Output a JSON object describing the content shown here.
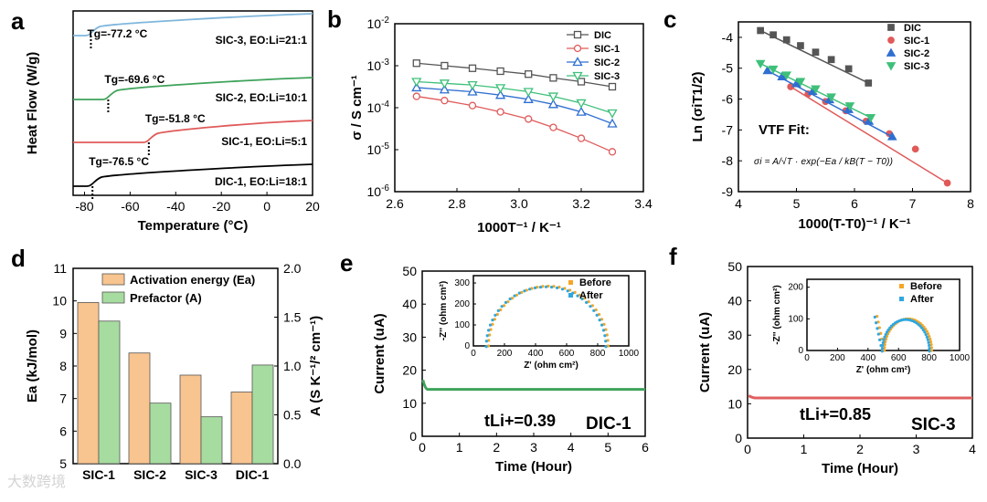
{
  "watermark": "大数跨境",
  "chart_data": [
    {
      "panel": "a",
      "type": "line",
      "xlabel": "Temperature (°C)",
      "ylabel": "Heat Flow (W/g)",
      "xlim": [
        -85,
        20
      ],
      "xticks": [
        -80,
        -60,
        -40,
        -20,
        0,
        20
      ],
      "series": [
        {
          "name": "SIC-3, EO:Li=21:1",
          "color": "#7fb6dc",
          "tg_label": "Tg=-77.2 °C",
          "tg": -77.2
        },
        {
          "name": "SIC-2, EO:Li=10:1",
          "color": "#3ea35a",
          "tg_label": "Tg=-69.6 °C",
          "tg": -69.6
        },
        {
          "name": "SIC-1, EO:Li=5:1",
          "color": "#e05a5a",
          "tg_label": "Tg=-51.8 °C",
          "tg": -51.8
        },
        {
          "name": "DIC-1, EO:Li=18:1",
          "color": "#000000",
          "tg_label": "Tg=-76.5 °C",
          "tg": -76.5
        }
      ]
    },
    {
      "panel": "b",
      "type": "line",
      "xlabel": "1000T⁻¹ / K⁻¹",
      "ylabel": "σ / S cm⁻¹",
      "xlim": [
        2.6,
        3.4
      ],
      "ylim_log10": [
        -6,
        -2
      ],
      "xticks": [
        2.6,
        2.8,
        3.0,
        3.2,
        3.4
      ],
      "yticks": [
        "10-6",
        "10-5",
        "10-4",
        "10-3",
        "10-2"
      ],
      "x": [
        2.67,
        2.76,
        2.85,
        2.94,
        3.03,
        3.11,
        3.2,
        3.3
      ],
      "series": [
        {
          "name": "DIC",
          "color": "#555555",
          "marker": "square",
          "log10": [
            -2.94,
            -3.0,
            -3.06,
            -3.13,
            -3.2,
            -3.29,
            -3.38,
            -3.5
          ]
        },
        {
          "name": "SIC-1",
          "color": "#e05a5a",
          "marker": "circle",
          "log10": [
            -3.73,
            -3.83,
            -3.95,
            -4.1,
            -4.27,
            -4.47,
            -4.73,
            -5.05
          ]
        },
        {
          "name": "SIC-2",
          "color": "#2f6fd0",
          "marker": "triangle-up",
          "log10": [
            -3.52,
            -3.57,
            -3.62,
            -3.7,
            -3.8,
            -3.92,
            -4.1,
            -4.38
          ]
        },
        {
          "name": "SIC-3",
          "color": "#3ec07a",
          "marker": "triangle-down",
          "log10": [
            -3.38,
            -3.42,
            -3.46,
            -3.53,
            -3.62,
            -3.73,
            -3.89,
            -4.13
          ]
        }
      ]
    },
    {
      "panel": "c",
      "type": "scatter",
      "xlabel": "1000(T-T0)⁻¹ / K⁻¹",
      "ylabel": "Ln (σiT1/2)",
      "xlim": [
        4,
        8
      ],
      "ylim": [
        -9,
        -3.5
      ],
      "xticks": [
        4,
        5,
        6,
        7,
        8
      ],
      "yticks": [
        -4,
        -5,
        -6,
        -7,
        -8,
        -9
      ],
      "annotation_title": "VTF Fit:",
      "annotation_formula": "σi = A/√T · exp(−Ea / kB(T − T0))",
      "series": [
        {
          "name": "DIC",
          "color": "#555555",
          "marker": "square",
          "x": [
            4.38,
            4.6,
            4.83,
            5.07,
            5.33,
            5.6,
            5.9,
            6.24
          ],
          "y": [
            -3.78,
            -3.92,
            -4.08,
            -4.27,
            -4.48,
            -4.72,
            -5.02,
            -5.48
          ]
        },
        {
          "name": "SIC-1",
          "color": "#e05a5a",
          "marker": "circle",
          "x": [
            4.9,
            5.2,
            5.5,
            5.85,
            6.2,
            6.6,
            7.05,
            7.6
          ],
          "y": [
            -5.6,
            -5.83,
            -6.08,
            -6.38,
            -6.72,
            -7.12,
            -7.62,
            -8.72
          ]
        },
        {
          "name": "SIC-2",
          "color": "#2f6fd0",
          "marker": "triangle-up",
          "x": [
            4.5,
            4.75,
            5.0,
            5.28,
            5.57,
            5.9,
            6.25,
            6.65
          ],
          "y": [
            -5.08,
            -5.28,
            -5.5,
            -5.75,
            -6.02,
            -6.34,
            -6.72,
            -7.22
          ]
        },
        {
          "name": "SIC-3",
          "color": "#3ec07a",
          "marker": "triangle-down",
          "x": [
            4.38,
            4.6,
            4.83,
            5.07,
            5.33,
            5.6,
            5.92,
            6.28
          ],
          "y": [
            -4.85,
            -5.03,
            -5.22,
            -5.43,
            -5.67,
            -5.93,
            -6.22,
            -6.6
          ]
        }
      ]
    },
    {
      "panel": "d",
      "type": "bar",
      "categories": [
        "SIC-1",
        "SIC-2",
        "SIC-3",
        "DIC-1"
      ],
      "ylabel_left": "Ea (kJ/mol)",
      "ylabel_right": "A (S K⁻¹/² cm⁻¹)",
      "ylim_left": [
        5,
        11
      ],
      "ylim_right": [
        0.0,
        2.0
      ],
      "yticks_left": [
        5,
        6,
        7,
        8,
        9,
        10,
        11
      ],
      "yticks_right": [
        "0.0",
        "0.5",
        "1.0",
        "1.5",
        "2.0"
      ],
      "series": [
        {
          "name": "Activation energy (Ea)",
          "color": "#f8c48f",
          "axis": "left",
          "values": [
            9.95,
            8.4,
            7.72,
            7.2
          ]
        },
        {
          "name": "Prefactor (A)",
          "color": "#a6dca0",
          "axis": "right",
          "values": [
            1.46,
            0.62,
            0.48,
            1.01
          ]
        }
      ]
    },
    {
      "panel": "e",
      "type": "line",
      "xlabel": "Time (Hour)",
      "ylabel": "Current (uA)",
      "xlim": [
        0,
        6
      ],
      "ylim": [
        0,
        50
      ],
      "xticks": [
        0,
        1,
        2,
        3,
        4,
        5,
        6
      ],
      "yticks": [
        0,
        10,
        20,
        30,
        40,
        50
      ],
      "series": [
        {
          "name": "DIC-1",
          "color": "#3ea35a",
          "steady": 14.2,
          "initial": 17
        }
      ],
      "t_label": "tLi+=0.39",
      "sample_label": "DIC-1",
      "inset": {
        "xlabel": "Z' (ohm cm²)",
        "ylabel": "-Z'' (ohm cm²)",
        "xticks": [
          0,
          200,
          400,
          600,
          800,
          1000
        ],
        "yticks": [
          0,
          100,
          200,
          300
        ],
        "legend": [
          "Before",
          "After"
        ],
        "colors": [
          "#f5a623",
          "#2ea7e0"
        ],
        "arc_start": 90,
        "arc_end": 860,
        "arc_peak": 285
      }
    },
    {
      "panel": "f",
      "type": "line",
      "xlabel": "Time (Hour)",
      "ylabel": "Current (uA)",
      "xlim": [
        0,
        4
      ],
      "ylim": [
        0,
        50
      ],
      "xticks": [
        0,
        1,
        2,
        3,
        4
      ],
      "yticks": [
        0,
        10,
        20,
        30,
        40,
        50
      ],
      "series": [
        {
          "name": "SIC-3",
          "color": "#e06060",
          "steady": 11.7,
          "initial": 12.4
        }
      ],
      "t_label": "tLi+=0.85",
      "sample_label": "SIC-3",
      "inset": {
        "xlabel": "Z' (ohm cm²)",
        "ylabel": "-Z'' (ohm cm²)",
        "xticks": [
          0,
          200,
          400,
          600,
          800,
          1000
        ],
        "yticks": [
          0,
          100,
          200
        ],
        "legend": [
          "Before",
          "After"
        ],
        "colors": [
          "#f5a623",
          "#2ea7e0"
        ],
        "arc_start": 500,
        "arc_end": 810,
        "arc_peak": 100
      }
    }
  ],
  "panel_letters": [
    "a",
    "b",
    "c",
    "d",
    "e",
    "f"
  ]
}
